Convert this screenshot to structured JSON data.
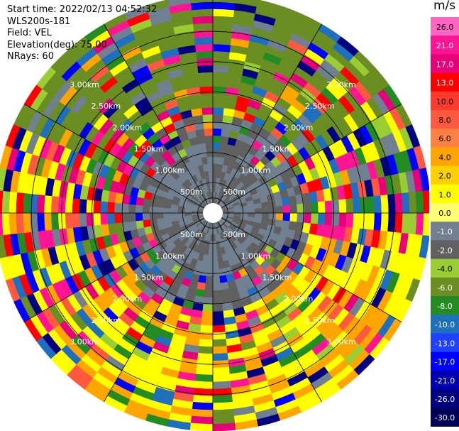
{
  "header": {
    "start_time": "Start time: 2022/02/13 04:52:32",
    "site": "WLS200s-181",
    "field": "Field: VEL",
    "elevation": "Elevation(deg): 75.00",
    "nrays": "NRays: 60"
  },
  "chart_data": {
    "type": "heatmap",
    "projection": "polar PPI",
    "n_rays": 60,
    "field": "VEL",
    "unit": "m/s",
    "range_ring_labels": [
      "500m",
      "1.00km",
      "1.50km",
      "2.00km",
      "2.50km",
      "3.00km"
    ],
    "range_rings_km": [
      0.5,
      1.0,
      1.5,
      2.0,
      2.5,
      3.0
    ],
    "max_range_km": 3.6,
    "colorbar": {
      "ticks": [
        "26.0",
        "21.0",
        "17.0",
        "13.0",
        "10.0",
        "8.0",
        "6.0",
        "4.0",
        "2.0",
        "1.0",
        "0.0",
        "-1.0",
        "-2.0",
        "-4.0",
        "-6.0",
        "-8.0",
        "-10.0",
        "-13.0",
        "-17.0",
        "-21.0",
        "-26.0",
        "-30.0"
      ],
      "colors": [
        "#ff66c4",
        "#ff1493",
        "#e8007a",
        "#ff0000",
        "#ff3a2a",
        "#ff5a40",
        "#ff8040",
        "#ffa500",
        "#ffd000",
        "#ffff00",
        "#ffff70",
        "#708090",
        "#606060",
        "#9acd32",
        "#6b8e23",
        "#228b22",
        "#1e6fbe",
        "#2040ff",
        "#0000ff",
        "#0000b0",
        "#000080",
        "#00005a"
      ]
    },
    "regions": [
      {
        "sector": "north / north-west (outer)",
        "dominant": "olive green"
      },
      {
        "sector": "inner disk (< 1.6 km)",
        "dominant": "slate gray / dark gray"
      },
      {
        "sector": "south / south-east (outer)",
        "dominant": "yellow / orange"
      },
      {
        "sector": "east / west edges",
        "dominant": "mixed red, blue, magenta"
      }
    ]
  }
}
